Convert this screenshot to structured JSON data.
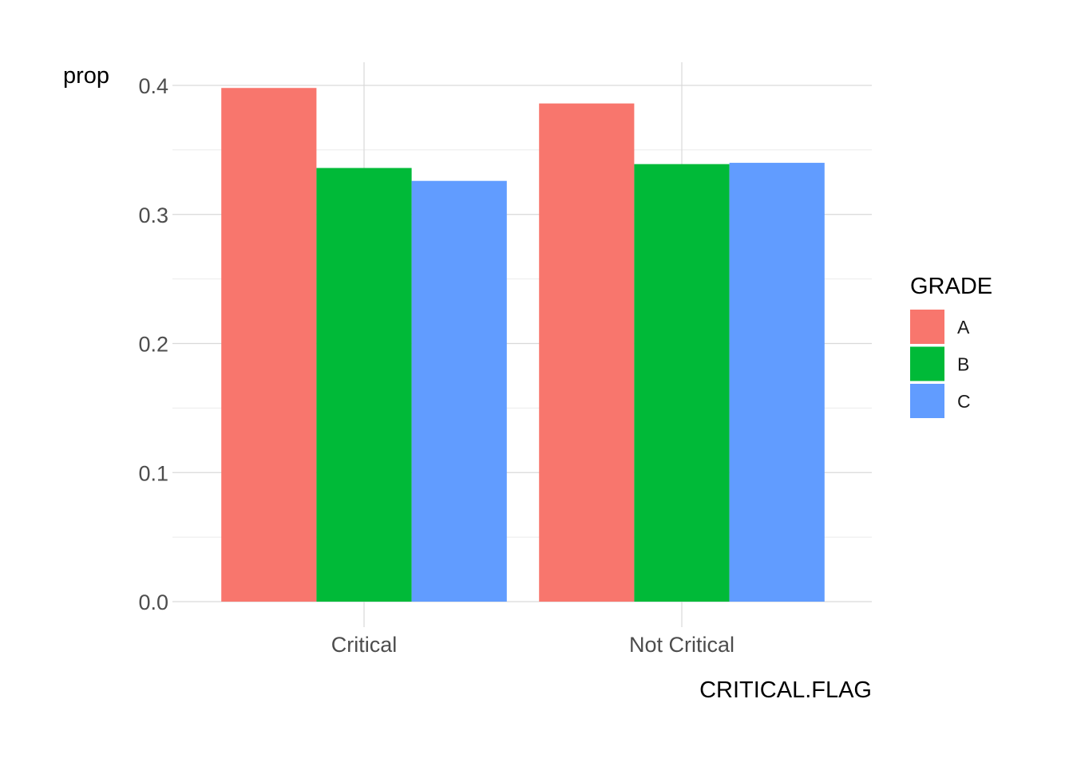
{
  "chart_data": {
    "type": "bar",
    "categories": [
      "Critical",
      "Not Critical"
    ],
    "series": [
      {
        "name": "A",
        "color": "#F8766D",
        "values": [
          0.398,
          0.386
        ]
      },
      {
        "name": "B",
        "color": "#00BA38",
        "values": [
          0.336,
          0.339
        ]
      },
      {
        "name": "C",
        "color": "#619CFF",
        "values": [
          0.326,
          0.34
        ]
      }
    ],
    "xlabel": "CRITICAL.FLAG",
    "ylabel": "prop",
    "ylim": [
      0,
      0.417
    ],
    "yticks": [
      "0.0",
      "0.1",
      "0.2",
      "0.3",
      "0.4"
    ],
    "ytick_values": [
      0,
      0.1,
      0.2,
      0.3,
      0.4
    ],
    "legend": {
      "title": "GRADE",
      "position": "right"
    },
    "grid": true,
    "bar_style": "dodge"
  }
}
